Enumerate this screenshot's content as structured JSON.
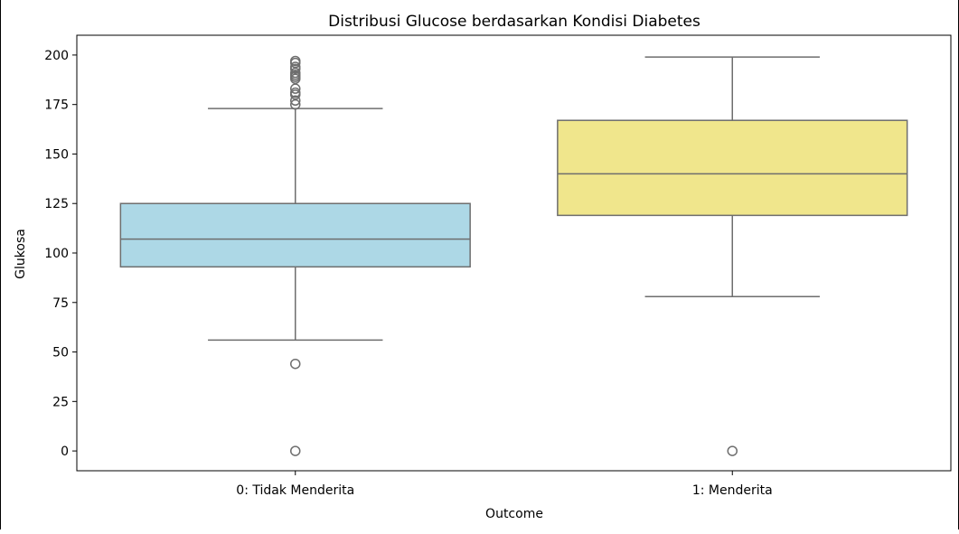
{
  "chart_data": {
    "type": "box",
    "title": "Distribusi Glucose berdasarkan Kondisi Diabetes",
    "xlabel": "Outcome",
    "ylabel": "Glukosa",
    "ylim": [
      -10,
      210
    ],
    "yticks": [
      0,
      25,
      50,
      75,
      100,
      125,
      150,
      175,
      200
    ],
    "grid": false,
    "categories": [
      "0: Tidak Menderita",
      "1: Menderita"
    ],
    "colors": [
      "#add8e6",
      "#f0e68c"
    ],
    "boxes": [
      {
        "category": "0: Tidak Menderita",
        "whisker_low": 56,
        "q1": 93,
        "median": 107,
        "q3": 125,
        "whisker_high": 173,
        "outliers": [
          0,
          44,
          175,
          177,
          180,
          181,
          183,
          188,
          189,
          190,
          191,
          193,
          194,
          196,
          197
        ]
      },
      {
        "category": "1: Menderita",
        "whisker_low": 78,
        "q1": 119,
        "median": 140,
        "q3": 167,
        "whisker_high": 199,
        "outliers": [
          0
        ]
      }
    ]
  }
}
